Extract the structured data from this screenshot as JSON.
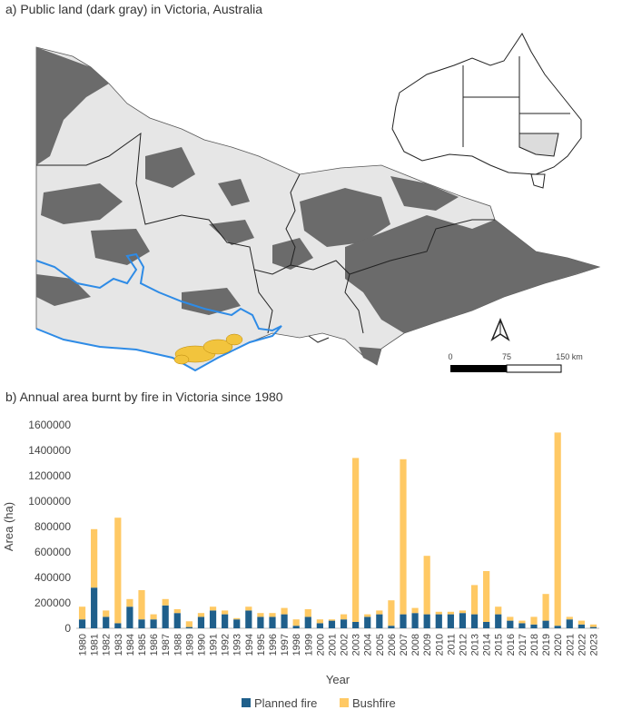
{
  "panel_a": {
    "title": "a) Public land (dark gray) in Victoria, Australia",
    "scale": {
      "ticks": [
        "0",
        "75",
        "150 km"
      ]
    },
    "north_arrow": "north-arrow-icon",
    "colors": {
      "public_land": "#6b6b6b",
      "other_land": "#e6e6e6",
      "highlight_boundary": "#2e8be6",
      "fire_area": "#f2c43d"
    }
  },
  "panel_b": {
    "title": "b) Annual area burnt by fire in Victoria since 1980"
  },
  "chart_data": {
    "type": "bar",
    "stacked": true,
    "xlabel": "Year",
    "ylabel": "Area (ha)",
    "ylim": [
      0,
      1600000
    ],
    "yticks": [
      "0",
      "200000",
      "400000",
      "600000",
      "800000",
      "1000000",
      "1200000",
      "1400000",
      "1600000"
    ],
    "categories": [
      "1980",
      "1981",
      "1982",
      "1983",
      "1984",
      "1985",
      "1986",
      "1987",
      "1988",
      "1989",
      "1990",
      "1991",
      "1992",
      "1993",
      "1994",
      "1995",
      "1996",
      "1997",
      "1998",
      "1999",
      "2000",
      "2001",
      "2002",
      "2003",
      "2004",
      "2005",
      "2006",
      "2007",
      "2008",
      "2009",
      "2010",
      "2011",
      "2012",
      "2013",
      "2014",
      "2015",
      "2016",
      "2017",
      "2018",
      "2019",
      "2020",
      "2021",
      "2022",
      "2023"
    ],
    "series": [
      {
        "name": "Planned fire",
        "color": "#1f5f8b",
        "values": [
          70000,
          320000,
          90000,
          40000,
          170000,
          70000,
          70000,
          180000,
          120000,
          10000,
          90000,
          140000,
          110000,
          70000,
          140000,
          90000,
          90000,
          110000,
          20000,
          90000,
          40000,
          60000,
          70000,
          50000,
          90000,
          110000,
          20000,
          110000,
          120000,
          110000,
          110000,
          110000,
          120000,
          110000,
          50000,
          110000,
          60000,
          40000,
          30000,
          60000,
          20000,
          70000,
          30000,
          10000
        ]
      },
      {
        "name": "Bushfire",
        "color": "#ffc964",
        "values": [
          100000,
          460000,
          50000,
          830000,
          60000,
          230000,
          40000,
          50000,
          30000,
          45000,
          30000,
          30000,
          30000,
          10000,
          30000,
          30000,
          30000,
          50000,
          50000,
          60000,
          30000,
          10000,
          40000,
          1290000,
          20000,
          30000,
          200000,
          1220000,
          40000,
          460000,
          20000,
          20000,
          20000,
          230000,
          400000,
          60000,
          30000,
          20000,
          60000,
          210000,
          1520000,
          20000,
          30000,
          20000
        ]
      }
    ],
    "legend_position": "bottom",
    "grid": false
  }
}
